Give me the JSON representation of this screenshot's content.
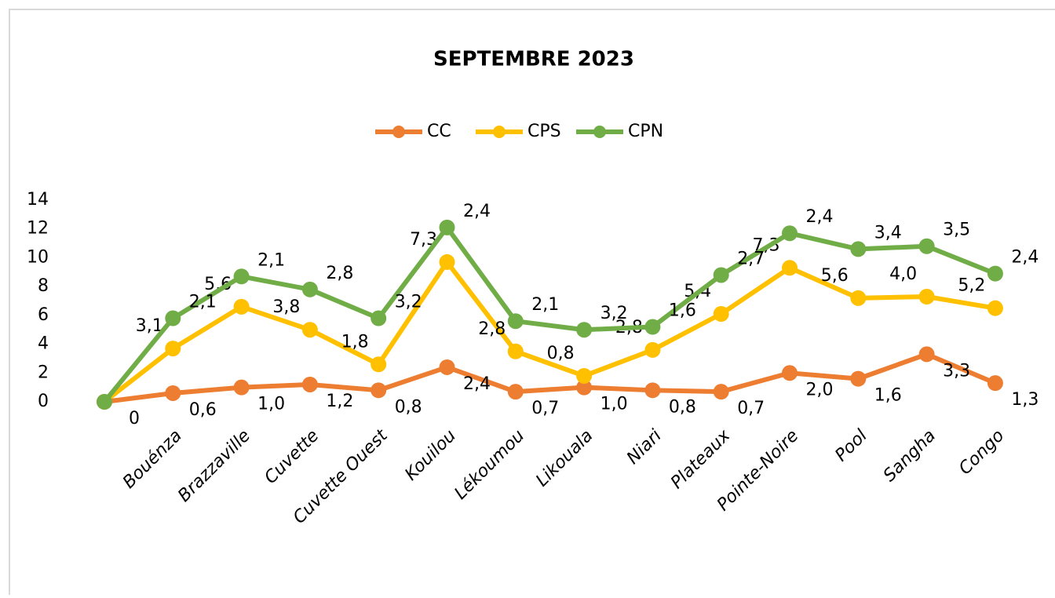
{
  "chart_data": {
    "type": "line",
    "stacked": true,
    "title": "SEPTEMBRE 2023",
    "categories": [
      null,
      "Bouénza",
      "Brazzaville",
      "Cuvette",
      "Cuvette Ouest",
      "Kouilou",
      "Lékoumou",
      "Likouala",
      "Niari",
      "Plateaux",
      "Pointe-Noire",
      "Pool",
      "Sangha",
      "Congo"
    ],
    "series": [
      {
        "name": "CC",
        "color": "#ED7D31",
        "values": [
          0,
          0.6,
          1.0,
          1.2,
          0.8,
          2.4,
          0.7,
          1.0,
          0.8,
          0.7,
          2.0,
          1.6,
          3.3,
          1.3
        ],
        "value_labels": [
          "0",
          "0,6",
          "1,0",
          "1,2",
          "0,8",
          "2,4",
          "0,7",
          "1,0",
          "0,8",
          "0,7",
          "2,0",
          "1,6",
          "3,3",
          "1,3"
        ]
      },
      {
        "name": "CPS",
        "color": "#FFC000",
        "values": [
          0,
          3.1,
          5.6,
          3.8,
          1.8,
          7.3,
          2.8,
          0.8,
          2.8,
          5.4,
          7.3,
          5.6,
          4.0,
          5.2
        ],
        "value_labels": [
          null,
          "3,1",
          "5,6",
          "3,8",
          "1,8",
          "7,3",
          "2,8",
          "0,8",
          "2,8",
          "5,4",
          "7,3",
          "5,6",
          "4,0",
          "5,2"
        ]
      },
      {
        "name": "CPN",
        "color": "#70AD47",
        "values": [
          0,
          2.1,
          2.1,
          2.8,
          3.2,
          2.4,
          2.1,
          3.2,
          1.6,
          2.7,
          2.4,
          3.4,
          3.5,
          2.4
        ],
        "value_labels": [
          null,
          "2,1",
          "2,1",
          "2,8",
          "3,2",
          "2,4",
          "2,1",
          "3,2",
          "1,6",
          "2,7",
          "2,4",
          "3,4",
          "3,5",
          "2,4"
        ]
      }
    ],
    "ylim": [
      0,
      14
    ],
    "yticks": [
      0,
      2,
      4,
      6,
      8,
      10,
      12,
      14
    ],
    "legend": "top"
  }
}
